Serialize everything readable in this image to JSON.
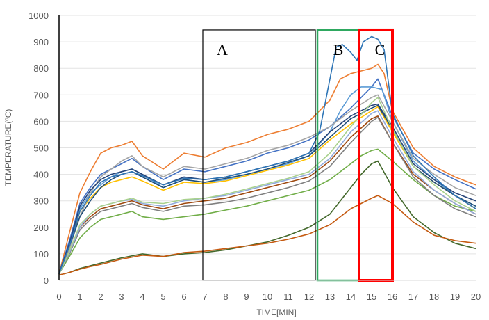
{
  "chart_data": {
    "type": "line",
    "title": "",
    "xlabel": "TIME[MIN]",
    "ylabel": "TEMPERATURE(ºC)",
    "xlim": [
      0,
      20
    ],
    "ylim": [
      0,
      1000
    ],
    "x_ticks": [
      "0",
      "1",
      "2",
      "3",
      "4",
      "5",
      "6",
      "7",
      "8",
      "9",
      "10",
      "11",
      "12",
      "13",
      "14",
      "15",
      "16",
      "17",
      "18",
      "19",
      "20"
    ],
    "y_ticks": [
      "0",
      "100",
      "200",
      "300",
      "400",
      "500",
      "600",
      "700",
      "800",
      "900",
      "1000"
    ],
    "grid": true,
    "legend": "none",
    "series": [
      {
        "color": "#ED7D31",
        "x": [
          0,
          0.5,
          1,
          1.5,
          2,
          2.5,
          3,
          3.5,
          4,
          5,
          6,
          7,
          8,
          9,
          10,
          11,
          12,
          13,
          13.5,
          14,
          14.5,
          15,
          15.3,
          15.6,
          16,
          17,
          18,
          19,
          20
        ],
        "y": [
          25,
          180,
          330,
          410,
          480,
          500,
          510,
          525,
          470,
          420,
          480,
          465,
          500,
          520,
          550,
          570,
          600,
          680,
          760,
          780,
          790,
          800,
          815,
          780,
          640,
          500,
          430,
          390,
          360
        ]
      },
      {
        "color": "#4472C4",
        "x": [
          0,
          0.5,
          1,
          1.5,
          2,
          2.5,
          3,
          3.5,
          4,
          5,
          6,
          7,
          8,
          9,
          10,
          11,
          12,
          13,
          14,
          14.5,
          15,
          15.3,
          16,
          17,
          18,
          19,
          20
        ],
        "y": [
          25,
          150,
          290,
          350,
          400,
          420,
          440,
          460,
          430,
          380,
          420,
          410,
          430,
          450,
          480,
          500,
          530,
          580,
          650,
          690,
          730,
          760,
          620,
          480,
          420,
          380,
          345
        ]
      },
      {
        "color": "#5B9BD5",
        "x": [
          0,
          0.5,
          1,
          1.5,
          2,
          2.5,
          3,
          3.5,
          4,
          5,
          6,
          7,
          8,
          9,
          10,
          11,
          12,
          13,
          13.5,
          14,
          14.5,
          15,
          15.5,
          16,
          17,
          18,
          19,
          20
        ],
        "y": [
          25,
          130,
          270,
          330,
          360,
          390,
          410,
          420,
          400,
          350,
          380,
          370,
          380,
          400,
          420,
          440,
          470,
          560,
          640,
          700,
          730,
          730,
          720,
          600,
          450,
          380,
          320,
          280
        ]
      },
      {
        "color": "#FFC000",
        "x": [
          0,
          0.5,
          1,
          1.5,
          2,
          2.5,
          3,
          3.5,
          4,
          5,
          6,
          7,
          8,
          9,
          10,
          11,
          12,
          13,
          14,
          15,
          15.3,
          16,
          17,
          18,
          19,
          20
        ],
        "y": [
          25,
          120,
          260,
          310,
          350,
          370,
          380,
          390,
          375,
          340,
          370,
          365,
          375,
          395,
          415,
          435,
          460,
          530,
          590,
          640,
          655,
          560,
          430,
          370,
          320,
          270
        ]
      },
      {
        "color": "#A5A5A5",
        "x": [
          0,
          0.5,
          1,
          1.5,
          2,
          2.5,
          3,
          3.5,
          4,
          5,
          6,
          7,
          8,
          9,
          10,
          11,
          12,
          13,
          14,
          15,
          15.3,
          16,
          17,
          18,
          19,
          20
        ],
        "y": [
          25,
          120,
          240,
          330,
          390,
          420,
          450,
          470,
          430,
          390,
          430,
          420,
          440,
          460,
          490,
          510,
          540,
          580,
          640,
          690,
          700,
          600,
          460,
          400,
          350,
          320
        ]
      },
      {
        "color": "#264478",
        "x": [
          0,
          0.5,
          1,
          1.5,
          2,
          2.5,
          3,
          3.5,
          4,
          5,
          6,
          7,
          8,
          9,
          10,
          11,
          12,
          13,
          14,
          15,
          15.3,
          16,
          17,
          18,
          19,
          20
        ],
        "y": [
          25,
          140,
          280,
          340,
          380,
          400,
          410,
          420,
          400,
          360,
          390,
          380,
          390,
          410,
          430,
          450,
          480,
          560,
          620,
          660,
          665,
          580,
          440,
          380,
          330,
          300
        ]
      },
      {
        "color": "#70AD47",
        "x": [
          0,
          0.5,
          1,
          1.5,
          2,
          2.5,
          3,
          3.5,
          4,
          5,
          6,
          7,
          8,
          9,
          10,
          11,
          12,
          13,
          14,
          14.5,
          15,
          15.3,
          16,
          17,
          18,
          19,
          20
        ],
        "y": [
          25,
          90,
          160,
          200,
          230,
          240,
          250,
          260,
          240,
          230,
          240,
          250,
          265,
          280,
          300,
          320,
          340,
          380,
          440,
          470,
          490,
          495,
          450,
          380,
          320,
          280,
          260
        ]
      },
      {
        "color": "#9E480E",
        "x": [
          0,
          0.5,
          1,
          1.5,
          2,
          2.5,
          3,
          3.5,
          4,
          5,
          6,
          7,
          8,
          9,
          10,
          11,
          12,
          13,
          14,
          15,
          15.3,
          16,
          17,
          18,
          19,
          20
        ],
        "y": [
          25,
          110,
          200,
          240,
          270,
          280,
          290,
          300,
          285,
          270,
          290,
          300,
          310,
          330,
          350,
          370,
          390,
          450,
          540,
          610,
          620,
          520,
          400,
          340,
          290,
          250
        ]
      },
      {
        "color": "#43682B",
        "x": [
          0,
          0.5,
          1,
          1.5,
          2,
          3,
          4,
          5,
          6,
          7,
          8,
          9,
          10,
          11,
          12,
          13,
          14,
          14.5,
          15,
          15.3,
          16,
          17,
          18,
          19,
          20
        ],
        "y": [
          20,
          30,
          45,
          55,
          65,
          85,
          100,
          90,
          100,
          105,
          115,
          130,
          145,
          170,
          200,
          250,
          350,
          400,
          440,
          450,
          350,
          240,
          180,
          140,
          120
        ]
      },
      {
        "color": "#C55A11",
        "x": [
          0,
          0.5,
          1,
          1.5,
          2,
          3,
          4,
          5,
          6,
          7,
          8,
          9,
          10,
          11,
          12,
          13,
          14,
          14.5,
          15,
          15.3,
          16,
          17,
          18,
          19,
          20
        ],
        "y": [
          20,
          30,
          42,
          52,
          60,
          80,
          95,
          90,
          105,
          110,
          120,
          130,
          140,
          155,
          175,
          210,
          270,
          290,
          310,
          320,
          290,
          220,
          170,
          150,
          140
        ]
      },
      {
        "color": "#7F7F7F",
        "x": [
          0,
          0.5,
          1,
          1.5,
          2,
          2.5,
          3,
          3.5,
          4,
          5,
          6,
          7,
          8,
          9,
          10,
          11,
          12,
          13,
          14,
          15,
          15.3,
          16,
          17,
          18,
          19,
          20
        ],
        "y": [
          25,
          100,
          190,
          230,
          260,
          270,
          280,
          290,
          275,
          260,
          280,
          285,
          295,
          310,
          330,
          350,
          375,
          430,
          520,
          600,
          615,
          520,
          390,
          320,
          270,
          240
        ]
      },
      {
        "color": "#1F4E79",
        "x": [
          0,
          0.5,
          1,
          1.5,
          2,
          2.5,
          3,
          3.5,
          4,
          5,
          6,
          7,
          8,
          9,
          10,
          11,
          12,
          13,
          14,
          15,
          15.3,
          16,
          17,
          18,
          19,
          20
        ],
        "y": [
          25,
          130,
          240,
          300,
          350,
          380,
          400,
          410,
          390,
          350,
          380,
          370,
          385,
          400,
          420,
          445,
          470,
          540,
          610,
          650,
          660,
          570,
          430,
          370,
          320,
          280
        ]
      },
      {
        "color": "#8FAADC",
        "x": [
          0,
          0.5,
          1,
          1.5,
          2,
          2.5,
          3,
          3.5,
          4,
          5,
          6,
          7,
          8,
          9,
          10,
          11,
          12,
          13,
          14,
          15,
          15.3,
          16,
          17,
          18,
          19,
          20
        ],
        "y": [
          25,
          105,
          200,
          250,
          280,
          290,
          300,
          305,
          290,
          280,
          300,
          310,
          320,
          340,
          360,
          380,
          400,
          460,
          560,
          630,
          640,
          540,
          410,
          340,
          290,
          250
        ]
      },
      {
        "color": "#A9D18E",
        "x": [
          0,
          0.5,
          1,
          1.5,
          2,
          2.5,
          3,
          3.5,
          4,
          5,
          6,
          7,
          8,
          9,
          10,
          11,
          12,
          13,
          14,
          15,
          15.3,
          16,
          17,
          18,
          19,
          20
        ],
        "y": [
          25,
          110,
          210,
          250,
          280,
          290,
          300,
          310,
          295,
          290,
          305,
          310,
          325,
          345,
          365,
          385,
          410,
          480,
          580,
          670,
          690,
          570,
          430,
          360,
          300,
          260
        ]
      },
      {
        "color": "#2E75B6",
        "x": [
          0,
          0.5,
          1,
          1.5,
          2,
          2.5,
          3,
          3.5,
          4,
          5,
          6,
          7,
          8,
          9,
          10,
          11,
          12,
          12.5,
          13,
          13.3,
          13.6,
          14,
          14.3,
          14.6,
          15,
          15.3,
          15.6,
          16,
          17,
          18,
          19,
          20
        ],
        "y": [
          25,
          130,
          260,
          320,
          370,
          390,
          400,
          410,
          395,
          360,
          385,
          380,
          390,
          410,
          430,
          450,
          480,
          560,
          760,
          880,
          890,
          860,
          830,
          900,
          920,
          910,
          870,
          630,
          470,
          390,
          320,
          270
        ]
      }
    ],
    "annotations": [
      {
        "label": "A",
        "x_range": [
          6.9,
          12.3
        ],
        "y_range": [
          0,
          945
        ],
        "color": "#000000"
      },
      {
        "label": "B",
        "x_range": [
          12.4,
          14.4
        ],
        "y_range": [
          0,
          945
        ],
        "color": "#2EA860"
      },
      {
        "label": "C",
        "x_range": [
          14.4,
          16.0
        ],
        "y_range": [
          0,
          945
        ],
        "color": "#FF0000"
      }
    ]
  }
}
